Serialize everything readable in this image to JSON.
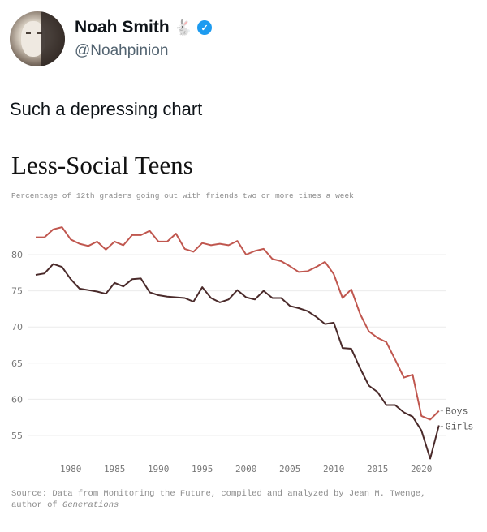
{
  "tweet": {
    "author_name": "Noah Smith",
    "author_emoji": "🐇",
    "verified_icon": "verified-badge-icon",
    "handle": "@Noahpinion",
    "text": "Such a depressing chart"
  },
  "colors": {
    "boys": "#c0574f",
    "girls": "#4a2a2a",
    "grid": "#ececec",
    "axis_text": "#777777",
    "verified": "#1d9bf0"
  },
  "chart_data": {
    "type": "line",
    "title": "Less-Social Teens",
    "subtitle": "Percentage of 12th graders going out with friends two or more times a week",
    "xlabel": "",
    "ylabel": "",
    "xlim": [
      1976,
      2022
    ],
    "ylim": [
      51,
      84.5
    ],
    "grid": true,
    "legend_placement": "end-of-line labels (right)",
    "x_ticks": [
      1980,
      1985,
      1990,
      1995,
      2000,
      2005,
      2010,
      2015,
      2020
    ],
    "y_ticks": [
      55,
      60,
      65,
      70,
      75,
      80
    ],
    "x": [
      1976,
      1977,
      1978,
      1979,
      1980,
      1981,
      1982,
      1983,
      1984,
      1985,
      1986,
      1987,
      1988,
      1989,
      1990,
      1991,
      1992,
      1993,
      1994,
      1995,
      1996,
      1997,
      1998,
      1999,
      2000,
      2001,
      2002,
      2003,
      2004,
      2005,
      2006,
      2007,
      2008,
      2009,
      2010,
      2011,
      2012,
      2013,
      2014,
      2015,
      2016,
      2017,
      2018,
      2019,
      2020,
      2021,
      2022
    ],
    "series": [
      {
        "name": "Boys",
        "values": [
          82.4,
          82.4,
          83.5,
          83.8,
          82.1,
          81.5,
          81.2,
          81.8,
          80.7,
          81.8,
          81.3,
          82.7,
          82.7,
          83.3,
          81.8,
          81.8,
          82.9,
          80.8,
          80.4,
          81.6,
          81.3,
          81.5,
          81.3,
          81.9,
          80.0,
          80.5,
          80.8,
          79.4,
          79.1,
          78.4,
          77.6,
          77.7,
          78.3,
          79.0,
          77.3,
          74.0,
          75.2,
          71.8,
          69.4,
          68.5,
          67.9,
          65.5,
          63.0,
          63.4,
          57.7,
          57.2,
          58.4
        ]
      },
      {
        "name": "Girls",
        "values": [
          77.2,
          77.4,
          78.7,
          78.3,
          76.6,
          75.3,
          75.1,
          74.9,
          74.6,
          76.1,
          75.6,
          76.6,
          76.7,
          74.8,
          74.4,
          74.2,
          74.1,
          74.0,
          73.5,
          75.5,
          74.0,
          73.4,
          73.8,
          75.1,
          74.1,
          73.8,
          75.0,
          74.0,
          74.0,
          72.9,
          72.6,
          72.2,
          71.4,
          70.4,
          70.6,
          67.1,
          67.0,
          64.3,
          61.9,
          61.0,
          59.2,
          59.2,
          58.2,
          57.6,
          55.7,
          51.8,
          56.4
        ]
      }
    ],
    "source": "Source: Data from Monitoring the Future, compiled and analyzed by Jean M. Twenge,",
    "source_line2_prefix": "author of ",
    "source_line2_italic": "Generations"
  }
}
